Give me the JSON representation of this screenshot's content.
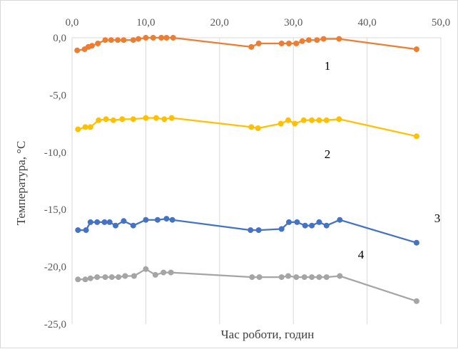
{
  "chart_data": {
    "type": "line",
    "xlabel": "Час роботи, годин",
    "ylabel": "Температура, °С",
    "xlim": [
      0,
      50
    ],
    "ylim": [
      -25,
      0
    ],
    "x_ticks": [
      "0,0",
      "10,0",
      "20,0",
      "30,0",
      "40,0",
      "50,0"
    ],
    "x_tick_values": [
      0,
      10,
      20,
      30,
      40,
      50
    ],
    "y_ticks": [
      "0,0",
      "-5,0",
      "-10,0",
      "-15,0",
      "-20,0",
      "-25,0"
    ],
    "y_tick_values": [
      0,
      -5,
      -10,
      -15,
      -20,
      -25
    ],
    "x_axis_position": "top",
    "grid": "vertical",
    "legend": "none",
    "series": [
      {
        "label": "1",
        "color": "#ED7D31",
        "points": [
          [
            0.7,
            -1.1
          ],
          [
            1.7,
            -1.0
          ],
          [
            2.2,
            -0.8
          ],
          [
            2.7,
            -0.7
          ],
          [
            3.5,
            -0.5
          ],
          [
            4.5,
            -0.2
          ],
          [
            5.3,
            -0.2
          ],
          [
            6.2,
            -0.2
          ],
          [
            7.0,
            -0.2
          ],
          [
            8.3,
            -0.2
          ],
          [
            9.0,
            -0.1
          ],
          [
            10.0,
            0.0
          ],
          [
            11.0,
            0.0
          ],
          [
            12.1,
            0.0
          ],
          [
            12.8,
            0.0
          ],
          [
            13.7,
            0.0
          ],
          [
            24.3,
            -0.8
          ],
          [
            25.3,
            -0.5
          ],
          [
            28.4,
            -0.5
          ],
          [
            29.4,
            -0.5
          ],
          [
            30.4,
            -0.5
          ],
          [
            31.2,
            -0.3
          ],
          [
            32.1,
            -0.2
          ],
          [
            33.2,
            -0.2
          ],
          [
            34.1,
            -0.1
          ],
          [
            36.2,
            -0.1
          ],
          [
            46.7,
            -1.0
          ]
        ]
      },
      {
        "label": "2",
        "color": "#FFC000",
        "points": [
          [
            0.8,
            -8.0
          ],
          [
            1.8,
            -7.8
          ],
          [
            2.5,
            -7.8
          ],
          [
            3.6,
            -7.2
          ],
          [
            4.6,
            -7.1
          ],
          [
            5.6,
            -7.2
          ],
          [
            6.8,
            -7.1
          ],
          [
            8.3,
            -7.1
          ],
          [
            10.0,
            -7.0
          ],
          [
            11.4,
            -7.0
          ],
          [
            12.5,
            -7.1
          ],
          [
            13.5,
            -7.0
          ],
          [
            24.3,
            -7.8
          ],
          [
            25.2,
            -7.9
          ],
          [
            28.3,
            -7.5
          ],
          [
            29.3,
            -7.2
          ],
          [
            30.2,
            -7.5
          ],
          [
            31.4,
            -7.2
          ],
          [
            32.5,
            -7.2
          ],
          [
            33.5,
            -7.2
          ],
          [
            34.5,
            -7.2
          ],
          [
            36.2,
            -7.1
          ],
          [
            46.7,
            -8.6
          ]
        ]
      },
      {
        "label": "3",
        "color": "#4472C4",
        "points": [
          [
            0.8,
            -16.8
          ],
          [
            1.9,
            -16.8
          ],
          [
            2.5,
            -16.1
          ],
          [
            3.4,
            -16.1
          ],
          [
            4.4,
            -16.1
          ],
          [
            5.1,
            -16.1
          ],
          [
            5.9,
            -16.4
          ],
          [
            7.0,
            -16.0
          ],
          [
            8.3,
            -16.4
          ],
          [
            10.0,
            -15.9
          ],
          [
            11.6,
            -15.9
          ],
          [
            12.8,
            -15.8
          ],
          [
            13.6,
            -15.9
          ],
          [
            24.2,
            -16.8
          ],
          [
            25.3,
            -16.8
          ],
          [
            28.4,
            -16.7
          ],
          [
            29.4,
            -16.1
          ],
          [
            30.5,
            -16.1
          ],
          [
            31.6,
            -16.4
          ],
          [
            32.5,
            -16.4
          ],
          [
            33.5,
            -16.1
          ],
          [
            34.5,
            -16.4
          ],
          [
            36.3,
            -15.9
          ],
          [
            46.7,
            -17.9
          ]
        ]
      },
      {
        "label": "4",
        "color": "#A5A5A5",
        "points": [
          [
            0.8,
            -21.1
          ],
          [
            1.8,
            -21.1
          ],
          [
            2.5,
            -21.0
          ],
          [
            3.4,
            -20.9
          ],
          [
            4.5,
            -20.9
          ],
          [
            5.4,
            -20.9
          ],
          [
            6.3,
            -20.9
          ],
          [
            7.2,
            -20.8
          ],
          [
            8.4,
            -20.8
          ],
          [
            10.0,
            -20.2
          ],
          [
            11.3,
            -20.7
          ],
          [
            12.4,
            -20.5
          ],
          [
            13.4,
            -20.5
          ],
          [
            24.4,
            -20.9
          ],
          [
            25.4,
            -20.9
          ],
          [
            28.4,
            -20.9
          ],
          [
            29.3,
            -20.8
          ],
          [
            30.4,
            -20.9
          ],
          [
            31.5,
            -20.9
          ],
          [
            32.5,
            -20.9
          ],
          [
            33.5,
            -20.9
          ],
          [
            34.5,
            -20.9
          ],
          [
            36.3,
            -20.8
          ],
          [
            46.7,
            -23.0
          ]
        ]
      }
    ]
  }
}
